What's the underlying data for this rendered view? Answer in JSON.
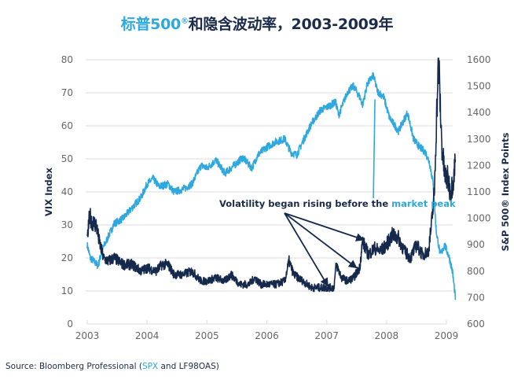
{
  "title": {
    "prefix": "标普500",
    "reg": "®",
    "rest": "和隐含波动率，2003-2009年"
  },
  "source": {
    "prefix": "Source: Bloomberg Professional (",
    "highlight": "SPX",
    "suffix": " and LF98OAS)"
  },
  "colors": {
    "vix": "#14294b",
    "spx": "#2ea8df",
    "grid": "#e3e3e3",
    "text": "#1b2c4a"
  },
  "chart_data": {
    "type": "line",
    "title": "标普500®和隐含波动率，2003-2009年",
    "xlabel": "",
    "ylabel": "VIX Index",
    "y2label": "S&P 500® Index Points",
    "x_ticks": [
      "2003",
      "2004",
      "2005",
      "2006",
      "2007",
      "2008",
      "2009"
    ],
    "xlim": [
      2003.0,
      2009.2
    ],
    "ylim": [
      0,
      80
    ],
    "y_ticks": [
      "0",
      "10",
      "20",
      "30",
      "40",
      "50",
      "60",
      "70",
      "80"
    ],
    "y2lim": [
      600,
      1600
    ],
    "y2_ticks": [
      "600",
      "700",
      "800",
      "900",
      "1000",
      "1100",
      "1200",
      "1300",
      "1400",
      "1500",
      "1600"
    ],
    "grid": true,
    "series": [
      {
        "name": "VIX Index",
        "axis": "left",
        "x": [
          2003.0,
          2003.04,
          2003.08,
          2003.15,
          2003.2,
          2003.27,
          2003.35,
          2003.45,
          2003.6,
          2003.75,
          2003.9,
          2004.0,
          2004.15,
          2004.25,
          2004.35,
          2004.45,
          2004.6,
          2004.75,
          2004.9,
          2005.0,
          2005.15,
          2005.3,
          2005.4,
          2005.55,
          2005.7,
          2005.8,
          2005.9,
          2006.0,
          2006.15,
          2006.3,
          2006.37,
          2006.45,
          2006.6,
          2006.75,
          2006.9,
          2007.0,
          2007.12,
          2007.16,
          2007.25,
          2007.35,
          2007.45,
          2007.55,
          2007.6,
          2007.7,
          2007.8,
          2007.9,
          2008.0,
          2008.1,
          2008.2,
          2008.3,
          2008.4,
          2008.5,
          2008.6,
          2008.7,
          2008.75,
          2008.8,
          2008.83,
          2008.87,
          2008.92,
          2008.97,
          2009.02,
          2009.07,
          2009.12,
          2009.15
        ],
        "values": [
          25,
          33,
          31,
          30,
          25,
          20,
          19,
          20,
          18,
          18,
          16,
          17,
          16,
          18,
          18,
          15,
          15,
          16,
          13,
          13,
          14,
          13,
          15,
          12,
          12,
          14,
          12,
          12,
          12,
          13,
          19,
          15,
          13,
          11,
          11,
          11,
          11,
          18,
          14,
          13,
          14,
          17,
          25,
          21,
          23,
          22,
          24,
          27,
          26,
          22,
          20,
          24,
          21,
          22,
          30,
          40,
          60,
          80,
          55,
          45,
          44,
          40,
          44,
          50
        ]
      },
      {
        "name": "S&P 500® Index",
        "axis": "right",
        "x": [
          2003.0,
          2003.05,
          2003.1,
          2003.18,
          2003.25,
          2003.35,
          2003.45,
          2003.6,
          2003.75,
          2003.9,
          2004.0,
          2004.1,
          2004.2,
          2004.35,
          2004.45,
          2004.6,
          2004.75,
          2004.9,
          2005.0,
          2005.15,
          2005.3,
          2005.45,
          2005.6,
          2005.75,
          2005.85,
          2006.0,
          2006.15,
          2006.3,
          2006.4,
          2006.5,
          2006.6,
          2006.75,
          2006.9,
          2007.0,
          2007.15,
          2007.2,
          2007.35,
          2007.45,
          2007.55,
          2007.6,
          2007.68,
          2007.78,
          2007.85,
          2007.95,
          2008.05,
          2008.2,
          2008.35,
          2008.45,
          2008.55,
          2008.65,
          2008.72,
          2008.78,
          2008.83,
          2008.9,
          2008.97,
          2009.05,
          2009.1,
          2009.15
        ],
        "values": [
          900,
          850,
          840,
          820,
          880,
          930,
          980,
          1000,
          1040,
          1080,
          1130,
          1150,
          1120,
          1130,
          1100,
          1110,
          1130,
          1200,
          1190,
          1220,
          1170,
          1200,
          1230,
          1190,
          1240,
          1270,
          1290,
          1300,
          1250,
          1240,
          1290,
          1360,
          1410,
          1420,
          1440,
          1390,
          1480,
          1500,
          1460,
          1430,
          1510,
          1540,
          1480,
          1460,
          1380,
          1330,
          1400,
          1300,
          1270,
          1250,
          1210,
          1130,
          950,
          860,
          900,
          850,
          800,
          700
        ]
      }
    ],
    "annotations": [
      {
        "text_prefix": "Volatility began rising before the ",
        "text_highlight": "market peak",
        "arrows_to": [
          "VIX 2007.16",
          "VIX 2007.55",
          "VIX 2007.6"
        ],
        "peak_marker": "S&P 2007.78"
      }
    ]
  }
}
